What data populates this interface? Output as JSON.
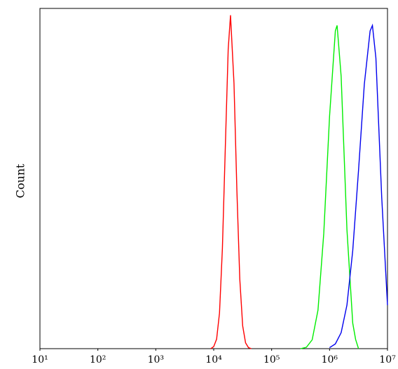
{
  "chart_data": {
    "type": "line",
    "y_label": "Count",
    "xscale": "log",
    "xlim": [
      10,
      10000000
    ],
    "ylim": [
      0,
      100
    ],
    "grid": false,
    "xticks": [
      {
        "value": 10,
        "label": "10¹"
      },
      {
        "value": 100,
        "label": "10²"
      },
      {
        "value": 1000,
        "label": "10³"
      },
      {
        "value": 10000,
        "label": "10⁴"
      },
      {
        "value": 100000,
        "label": "10⁵"
      },
      {
        "value": 1000000,
        "label": "10⁶"
      },
      {
        "value": 10000000,
        "label": "10⁷"
      }
    ],
    "series": [
      {
        "color": "#ff0000",
        "x": [
          8913,
          10000,
          11220,
          12589,
          14125,
          15849,
          17783,
          19498,
          22387,
          25119,
          28184,
          31623,
          35481,
          39811,
          44668
        ],
        "values": [
          0,
          0.6,
          2.8,
          10.5,
          29.5,
          59,
          88,
          98,
          78,
          46.5,
          20.5,
          6.7,
          1.7,
          0.3,
          0
        ]
      },
      {
        "color": "#00ee00",
        "x": [
          316228,
          398107,
          501187,
          630957,
          794328,
          1000000,
          1258925,
          1348963,
          1584893,
          1995262,
          2511886,
          2818383,
          3162278
        ],
        "values": [
          0,
          0.4,
          2.6,
          11.3,
          33.9,
          68.3,
          93.4,
          95,
          80,
          35,
          7.5,
          2.7,
          0
        ]
      },
      {
        "color": "#0000ee",
        "x": [
          1000000,
          1258925,
          1584893,
          1995262,
          2511886,
          3162278,
          3981072,
          5011872,
          5495409,
          6309573,
          7943282,
          10000000
        ],
        "values": [
          0.3,
          1.4,
          4.7,
          12.8,
          28.8,
          52.4,
          77.7,
          93.4,
          95,
          85.4,
          44.6,
          12.8
        ]
      }
    ]
  }
}
